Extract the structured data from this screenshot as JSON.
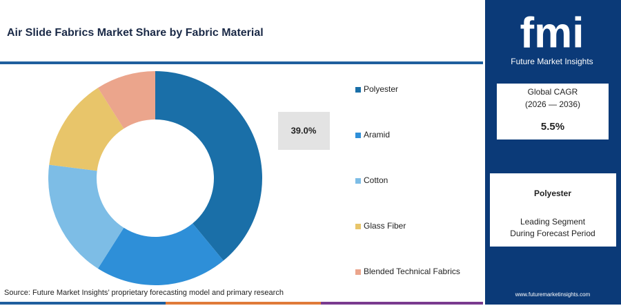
{
  "chart_data": {
    "type": "donut",
    "title": "Air Slide Fabrics Market Share by Fabric Material",
    "categories": [
      "Polyester",
      "Aramid",
      "Cotton",
      "Glass Fiber",
      "Blended Technical Fabrics"
    ],
    "values": [
      39.0,
      20,
      18,
      14,
      9
    ],
    "value_labels": [
      "39.0%",
      null,
      null,
      null,
      null
    ],
    "colors": [
      "#1a6fa8",
      "#2e8fd8",
      "#7dbde6",
      "#e8c56a",
      "#eba58c"
    ],
    "source": "Source: Future Market Insights’ proprietary forecasting model and primary research"
  },
  "sidebar": {
    "logo": "fmi",
    "brand": "Future Market Insights",
    "cagr_title": "Global CAGR",
    "cagr_period": "(2026 — 2036)",
    "cagr_value": "5.5%",
    "segment": "Polyester",
    "segment_note_1": "Leading Segment",
    "segment_note_2": "During Forecast Period",
    "website": "www.futuremarketinsights.com"
  }
}
